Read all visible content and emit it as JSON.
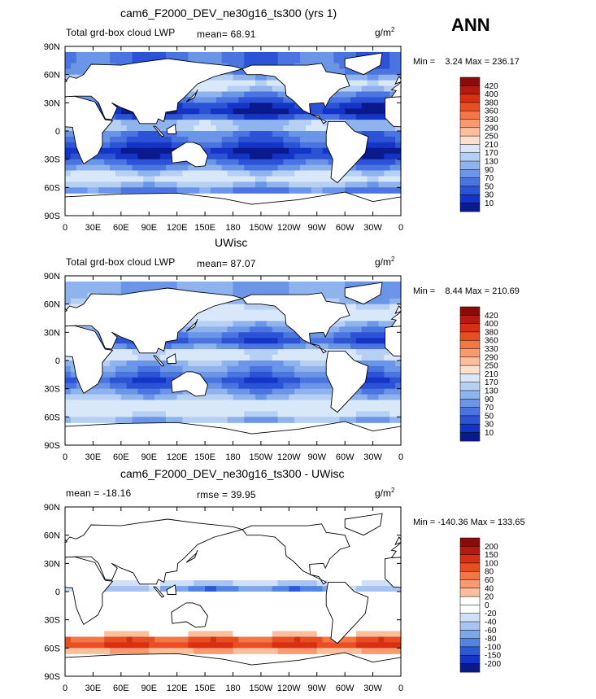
{
  "season": "ANN",
  "panels": [
    {
      "title": "cam6_F2000_DEV_ne30g16_ts300 (yrs 1)",
      "subtitle": "Total grd-box cloud LWP",
      "stat_text": "mean=   68.91",
      "units": "g/m",
      "units_sup": "2",
      "min_text": "Min =    3.24 Max = 236.17",
      "colorbar_labels": [
        "420",
        "400",
        "380",
        "360",
        "330",
        "290",
        "250",
        "210",
        "170",
        "130",
        "90",
        "70",
        "50",
        "30",
        "10"
      ],
      "colorbar_colors": [
        "#8b0a0a",
        "#b51a10",
        "#d62f12",
        "#e84e23",
        "#f47645",
        "#f89a70",
        "#fbbf9e",
        "#fde0cc",
        "#d8e8f8",
        "#b6d0f3",
        "#8fb3ec",
        "#6b95e6",
        "#4a74df",
        "#2c52d6",
        "#1433c7",
        "#0a1a8c"
      ]
    },
    {
      "title": "UWisc",
      "subtitle": "Total grd-box cloud LWP",
      "stat_text": "mean=   87.07",
      "units": "g/m",
      "units_sup": "2",
      "min_text": "Min =    8.44 Max = 210.69",
      "colorbar_labels": [
        "420",
        "400",
        "380",
        "360",
        "330",
        "290",
        "250",
        "210",
        "170",
        "130",
        "90",
        "70",
        "50",
        "30",
        "10"
      ],
      "colorbar_colors": [
        "#8b0a0a",
        "#b51a10",
        "#d62f12",
        "#e84e23",
        "#f47645",
        "#f89a70",
        "#fbbf9e",
        "#fde0cc",
        "#d8e8f8",
        "#b6d0f3",
        "#8fb3ec",
        "#6b95e6",
        "#4a74df",
        "#2c52d6",
        "#1433c7",
        "#0a1a8c"
      ]
    },
    {
      "title": "cam6_F2000_DEV_ne30g16_ts300 - UWisc",
      "subtitle": "mean = -18.16",
      "stat_text": "rmse =   39.95",
      "units": "g/m",
      "units_sup": "2",
      "min_text": "Min = -140.36 Max = 133.65",
      "colorbar_labels": [
        "200",
        "150",
        "100",
        "80",
        "60",
        "40",
        "20",
        "0",
        "-20",
        "-40",
        "-60",
        "-80",
        "-100",
        "-150",
        "-200"
      ],
      "colorbar_colors": [
        "#8b0a0a",
        "#b51a10",
        "#d62f12",
        "#e84e23",
        "#f47645",
        "#f89a70",
        "#fbbf9e",
        "#ffffff",
        "#ffffff",
        "#cfe0f6",
        "#a6c4ef",
        "#7ea6e8",
        "#5584e0",
        "#2c5ad6",
        "#1433c7",
        "#0a1a8c"
      ]
    }
  ],
  "chart_data": {
    "type": "heatmap",
    "projection": "cylindrical equidistant global map",
    "x_ticks": [
      "0",
      "30E",
      "60E",
      "90E",
      "120E",
      "150E",
      "180",
      "150W",
      "120W",
      "90W",
      "60W",
      "30W",
      "0"
    ],
    "y_ticks": [
      "90N",
      "60N",
      "30N",
      "0",
      "30S",
      "60S",
      "90S"
    ],
    "xlim": [
      0,
      360
    ],
    "ylim": [
      -90,
      90
    ],
    "variable": "Total grd-box cloud LWP",
    "units": "g/m2",
    "panels": [
      {
        "title": "cam6_F2000_DEV_ne30g16_ts300 (yrs 1)",
        "mean": 68.91,
        "min": 3.24,
        "max": 236.17
      },
      {
        "title": "UWisc",
        "mean": 87.07,
        "min": 8.44,
        "max": 210.69
      },
      {
        "title": "cam6_F2000_DEV_ne30g16_ts300 - UWisc",
        "mean": -18.16,
        "rmse": 39.95,
        "min": -140.36,
        "max": 133.65
      }
    ]
  }
}
